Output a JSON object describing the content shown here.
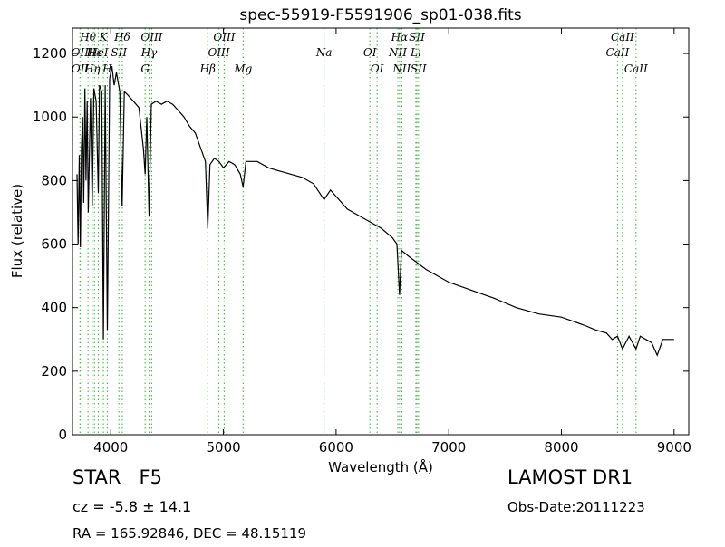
{
  "chart_data": {
    "type": "line",
    "title": "spec-55919-F5591906_sp01-038.fits",
    "x_label": "Wavelength (Å)",
    "y_label": "Flux (relative)",
    "xlim": [
      3660,
      9130
    ],
    "ylim": [
      0,
      1280
    ],
    "xticks": [
      4000,
      5000,
      6000,
      7000,
      8000,
      9000
    ],
    "yticks": [
      0,
      200,
      400,
      600,
      800,
      1000,
      1200
    ],
    "color": "#000000",
    "annotation_color": "#5cb85c",
    "x": [
      3700,
      3710,
      3720,
      3730,
      3740,
      3750,
      3760,
      3770,
      3780,
      3790,
      3800,
      3820,
      3835,
      3850,
      3870,
      3889,
      3900,
      3920,
      3934,
      3950,
      3970,
      3990,
      4010,
      4030,
      4050,
      4080,
      4101,
      4120,
      4150,
      4200,
      4250,
      4290,
      4305,
      4320,
      4340,
      4360,
      4400,
      4450,
      4500,
      4550,
      4600,
      4650,
      4700,
      4750,
      4800,
      4840,
      4861,
      4880,
      4920,
      4960,
      5000,
      5050,
      5100,
      5150,
      5175,
      5200,
      5300,
      5400,
      5500,
      5600,
      5700,
      5800,
      5893,
      5950,
      6000,
      6100,
      6200,
      6300,
      6400,
      6500,
      6540,
      6563,
      6580,
      6650,
      6800,
      7000,
      7200,
      7400,
      7600,
      7800,
      8000,
      8200,
      8300,
      8400,
      8450,
      8498,
      8542,
      8600,
      8662,
      8700,
      8800,
      8850,
      8900,
      9000
    ],
    "values": [
      820,
      600,
      880,
      590,
      900,
      1000,
      730,
      1090,
      800,
      1050,
      700,
      1060,
      720,
      1090,
      1050,
      760,
      1100,
      1080,
      300,
      1100,
      330,
      1120,
      1160,
      1100,
      1140,
      1080,
      720,
      1080,
      1070,
      1050,
      1030,
      900,
      820,
      1000,
      690,
      1040,
      1050,
      1040,
      1050,
      1040,
      1020,
      1000,
      970,
      950,
      900,
      860,
      650,
      850,
      870,
      860,
      840,
      860,
      850,
      820,
      780,
      860,
      860,
      840,
      830,
      820,
      810,
      790,
      740,
      770,
      750,
      710,
      690,
      670,
      650,
      620,
      600,
      440,
      580,
      560,
      520,
      480,
      455,
      430,
      400,
      380,
      370,
      345,
      330,
      320,
      300,
      310,
      270,
      310,
      270,
      310,
      290,
      250,
      300,
      300
    ],
    "annotations": [
      [
        {
          "label": "Hθ",
          "x": 3798
        },
        {
          "label": "K",
          "x": 3934
        },
        {
          "label": "Hδ",
          "x": 4102
        },
        {
          "label": "OIII",
          "x": 4363
        },
        {
          "label": "OIII",
          "x": 5007
        },
        {
          "label": "Hα",
          "x": 6563
        },
        {
          "label": "SII",
          "x": 6717
        },
        {
          "label": "CaII",
          "x": 8542
        }
      ],
      [
        {
          "label": "OII",
          "x": 3727
        },
        {
          "label": "Hε",
          "x": 3855
        },
        {
          "label": "HeI",
          "x": 3889
        },
        {
          "label": "SII",
          "x": 4072
        },
        {
          "label": "Hγ",
          "x": 4340
        },
        {
          "label": "OIII",
          "x": 4959
        },
        {
          "label": "Na",
          "x": 5893
        },
        {
          "label": "OI",
          "x": 6300
        },
        {
          "label": "NII",
          "x": 6548
        },
        {
          "label": "Lı",
          "x": 6708
        },
        {
          "label": "CaII",
          "x": 8498
        }
      ],
      [
        {
          "label": "OII",
          "x": 3729
        },
        {
          "label": "Hη",
          "x": 3835
        },
        {
          "label": "H",
          "x": 3969
        },
        {
          "label": "G",
          "x": 4305
        },
        {
          "label": "Hβ",
          "x": 4861
        },
        {
          "label": "Mg",
          "x": 5175
        },
        {
          "label": "OI",
          "x": 6364
        },
        {
          "label": "NII",
          "x": 6583
        },
        {
          "label": "SII",
          "x": 6731
        },
        {
          "label": "CaII",
          "x": 8662
        }
      ]
    ],
    "object": "STAR   F5",
    "redshift": "cz = -5.8 ± 14.1",
    "position": "RA = 165.92846, DEC = 48.15119",
    "survey": "LAMOST DR1",
    "obs_date": "Obs-Date:20111223"
  }
}
